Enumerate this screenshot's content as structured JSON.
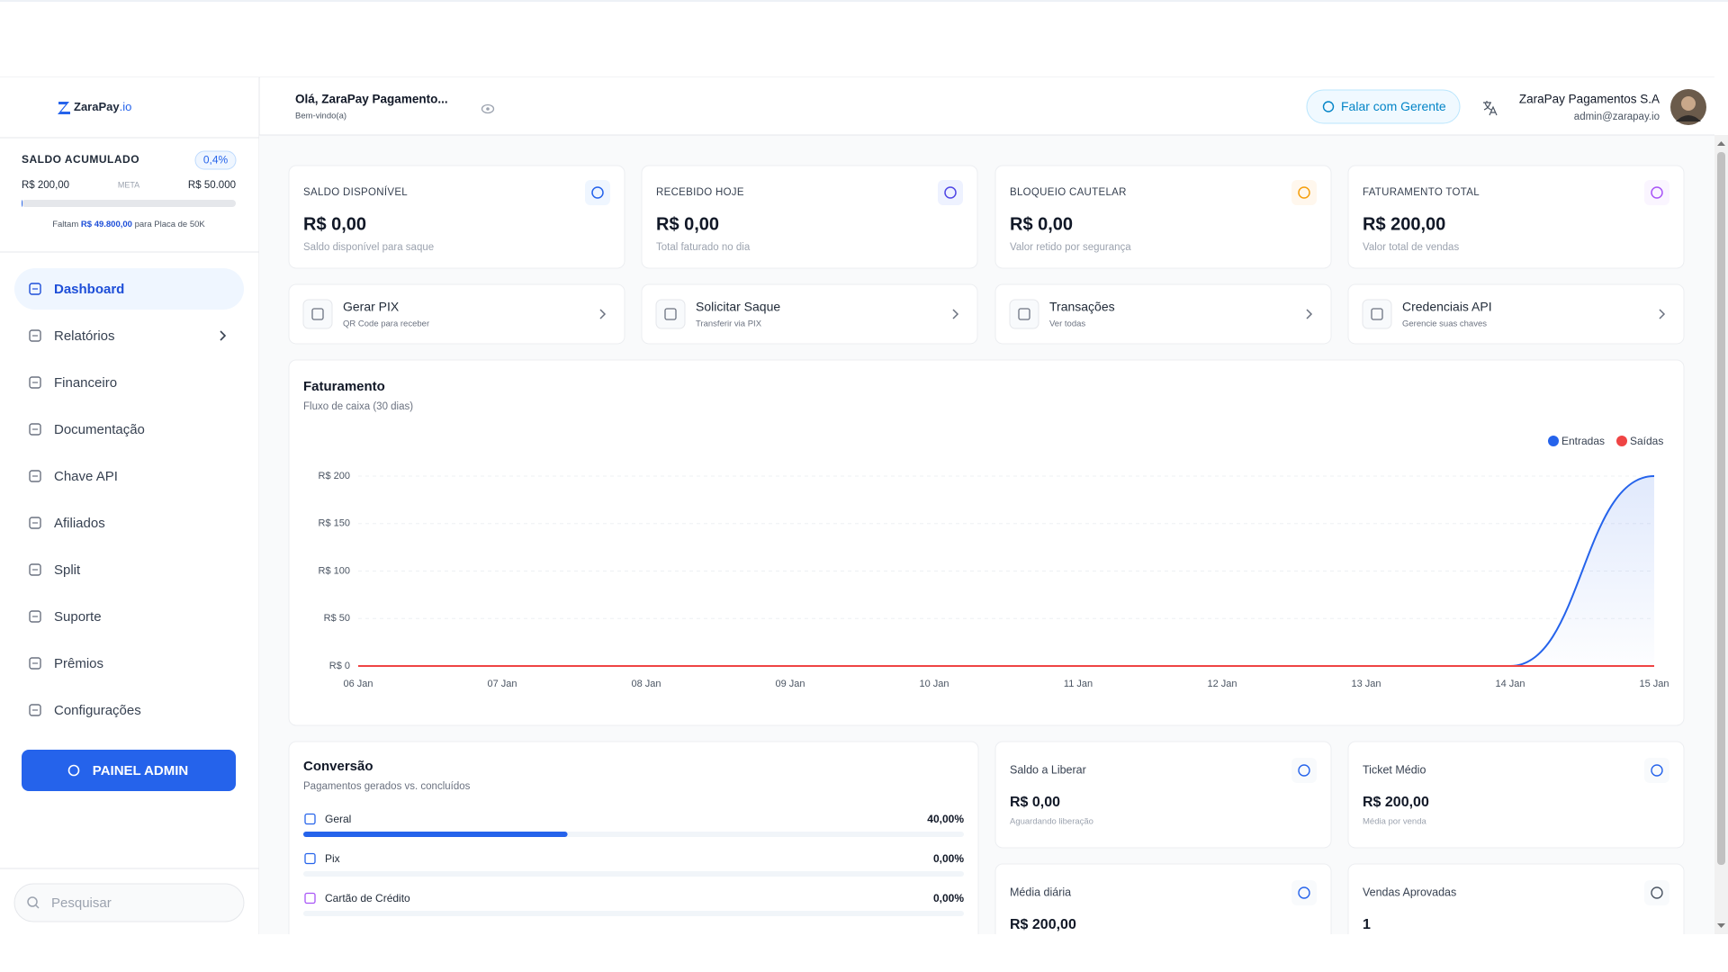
{
  "brand": {
    "name": "ZaraPay",
    "suffix": ".io"
  },
  "balance": {
    "title": "SALDO ACUMULADO",
    "progress": {
      "value": 0.4,
      "label": "0,4%"
    },
    "current": "R$ 200,00",
    "meta": "META",
    "goal": "R$ 50.000",
    "note_prefix": "Faltam",
    "note_amount": "R$ 49.800,00",
    "note_suffix": "para Placa de 50K"
  },
  "nav": [
    "Dashboard",
    "Relatórios",
    "Financeiro",
    "Documentação",
    "Chave API",
    "Afiliados",
    "Split",
    "Suporte",
    "Prêmios",
    "Configurações"
  ],
  "nav_active": 0,
  "admin_button": "PAINEL ADMIN",
  "search_placeholder": "Pesquisar",
  "header": {
    "greeting": "Olá, ZaraPay Pagamento...",
    "welcome": "Bem-vindo(a)",
    "contact_button": "Falar com Gerente",
    "user_name": "ZaraPay Pagamentos S.A",
    "user_email": "admin@zarapay.io"
  },
  "stats": [
    {
      "label": "SALDO DISPONÍVEL",
      "value": "R$ 0,00",
      "sub": "Saldo disponível para saque"
    },
    {
      "label": "RECEBIDO HOJE",
      "value": "R$ 0,00",
      "sub": "Total faturado no dia"
    },
    {
      "label": "BLOQUEIO CAUTELAR",
      "value": "R$ 0,00",
      "sub": "Valor retido por segurança"
    },
    {
      "label": "FATURAMENTO TOTAL",
      "value": "R$ 200,00",
      "sub": "Valor total de vendas"
    }
  ],
  "actions": [
    {
      "title": "Gerar PIX",
      "sub": "QR Code para receber"
    },
    {
      "title": "Solicitar Saque",
      "sub": "Transferir via PIX"
    },
    {
      "title": "Transações",
      "sub": "Ver todas"
    },
    {
      "title": "Credenciais API",
      "sub": "Gerencie suas chaves"
    }
  ],
  "chart_data": {
    "type": "line",
    "title": "Faturamento",
    "subtitle": "Fluxo de caixa (30 dias)",
    "categories": [
      "06 Jan",
      "07 Jan",
      "08 Jan",
      "09 Jan",
      "10 Jan",
      "11 Jan",
      "12 Jan",
      "13 Jan",
      "14 Jan",
      "15 Jan"
    ],
    "series": [
      {
        "name": "Entradas",
        "color": "#2563eb",
        "values": [
          0,
          0,
          0,
          0,
          0,
          0,
          0,
          0,
          0,
          200
        ]
      },
      {
        "name": "Saídas",
        "color": "#ef4444",
        "values": [
          0,
          0,
          0,
          0,
          0,
          0,
          0,
          0,
          0,
          0
        ]
      }
    ],
    "ylim": [
      0,
      200
    ],
    "yticks": [
      {
        "value": 0,
        "label": "R$ 0"
      },
      {
        "value": 50,
        "label": "R$ 50"
      },
      {
        "value": 100,
        "label": "R$ 100"
      },
      {
        "value": 150,
        "label": "R$ 150"
      },
      {
        "value": 200,
        "label": "R$ 200"
      }
    ],
    "grid": true,
    "legend": "top-right"
  },
  "conversion": {
    "title": "Conversão",
    "subtitle": "Pagamentos gerados vs. concluídos",
    "rows": [
      {
        "label": "Geral",
        "value": 40,
        "value_label": "40,00%"
      },
      {
        "label": "Pix",
        "value": 0,
        "value_label": "0,00%"
      },
      {
        "label": "Cartão de Crédito",
        "value": 0,
        "value_label": "0,00%"
      }
    ]
  },
  "mini_stats": [
    {
      "label": "Saldo a Liberar",
      "value": "R$ 0,00",
      "sub": "Aguardando liberação"
    },
    {
      "label": "Ticket Médio",
      "value": "R$ 200,00",
      "sub": "Média por venda"
    },
    {
      "label": "Média diária",
      "value": "R$ 200,00"
    },
    {
      "label": "Vendas Aprovadas",
      "value": "1"
    }
  ]
}
